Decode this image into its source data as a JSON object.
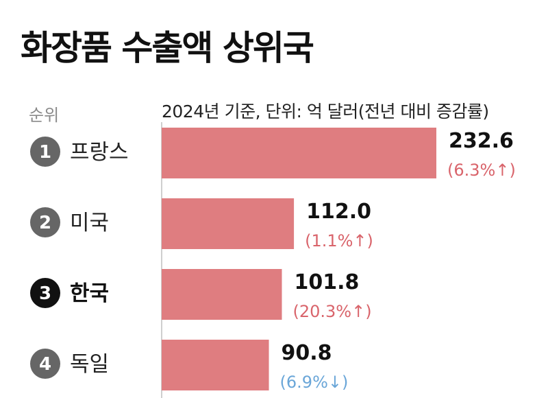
{
  "title": "화장품 수출액 상위국",
  "rank_header": "순위",
  "subtitle": "2024년 기준, 단위: 억 달러(전년 대비 증감률)",
  "colors": {
    "bar": "#df7d80",
    "increase": "#d9646b",
    "decrease": "#6aa6d8",
    "badge": "#666666",
    "badge_highlight": "#111111"
  },
  "chart_data": {
    "type": "bar",
    "orientation": "horizontal",
    "categories": [
      "프랑스",
      "미국",
      "한국",
      "독일"
    ],
    "ranks": [
      "1",
      "2",
      "3",
      "4"
    ],
    "values": [
      232.6,
      112.0,
      101.8,
      90.8
    ],
    "value_labels": [
      "232.6",
      "112.0",
      "101.8",
      "90.8"
    ],
    "change_labels": [
      "(6.3%↑)",
      "(1.1%↑)",
      "(20.3%↑)",
      "(6.9%↓)"
    ],
    "change_direction": [
      "up",
      "up",
      "up",
      "down"
    ],
    "highlight_category": "한국",
    "unit": "억 달러",
    "xlim": [
      0,
      232.6
    ],
    "grid": false,
    "legend": "none"
  }
}
